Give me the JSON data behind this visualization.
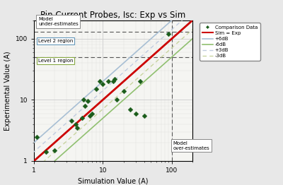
{
  "title": "Pin Current Probes, Isc: Exp vs Sim",
  "xlabel": "Simulation Value (A)",
  "ylabel": "Experimental Value (A)",
  "xlim": [
    1,
    200
  ],
  "ylim": [
    1,
    200
  ],
  "scatter_x": [
    1.1,
    1.5,
    2.0,
    3.5,
    4.0,
    4.2,
    5.0,
    5.2,
    5.5,
    6.0,
    6.5,
    7.0,
    8.0,
    9.0,
    10.0,
    12.0,
    14.0,
    15.0,
    16.0,
    20.0,
    25.0,
    30.0,
    35.0,
    40.0,
    90.0
  ],
  "scatter_y": [
    2.5,
    1.4,
    1.5,
    4.5,
    4.0,
    3.5,
    5.0,
    10.0,
    8.0,
    9.5,
    5.5,
    6.0,
    15.0,
    20.0,
    18.0,
    20.0,
    20.0,
    22.0,
    10.0,
    14.0,
    7.0,
    6.0,
    20.0,
    5.5,
    120.0
  ],
  "scatter_color": "#1a5c1a",
  "scatter_marker": "D",
  "scatter_size": 12,
  "line_sim_eq_exp_color": "#cc0000",
  "line_6dB_plus_color": "#a8bfd4",
  "line_6dB_minus_color": "#90c070",
  "line_3dB_plus_color": "#c0cce0",
  "line_3dB_minus_color": "#c8d4a0",
  "dashed_hline_y1": 50,
  "dashed_hline_y2": 130,
  "dashed_vline_x": 100,
  "fig_bg": "#e8e8e8",
  "ax_bg": "#f5f5f2"
}
